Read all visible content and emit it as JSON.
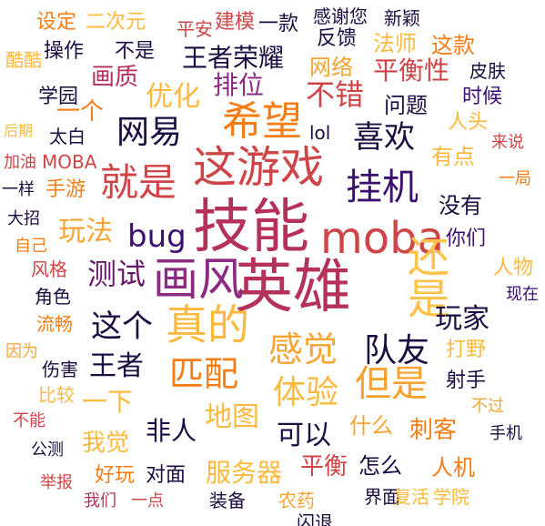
{
  "words": [
    {
      "text": "技能",
      "color": "#b5315a"
    },
    {
      "text": "英雄",
      "color": "#b5315a"
    },
    {
      "text": "这游戏",
      "color": "#cf4446"
    },
    {
      "text": "moba",
      "color": "#cf4446"
    },
    {
      "text": "画风",
      "color": "#8c2981"
    },
    {
      "text": "希望",
      "color": "#f57d15"
    },
    {
      "text": "真的",
      "color": "#fcb93e"
    },
    {
      "text": "还是",
      "color": "#fdc248"
    },
    {
      "text": "就是",
      "color": "#cf4446"
    },
    {
      "text": "挂机",
      "color": "#3b0f70"
    },
    {
      "text": "网易",
      "color": "#1b0c41"
    },
    {
      "text": "喜欢",
      "color": "#1b0c41"
    },
    {
      "text": "感觉",
      "color": "#f6a433"
    },
    {
      "text": "队友",
      "color": "#1b0c41"
    },
    {
      "text": "匹配",
      "color": "#f57d15"
    },
    {
      "text": "体验",
      "color": "#fcb93e"
    },
    {
      "text": "但是",
      "color": "#f8a12c"
    },
    {
      "text": "这个",
      "color": "#1b0c41"
    },
    {
      "text": "测试",
      "color": "#6a176e"
    },
    {
      "text": "bug",
      "color": "#3b0f70"
    },
    {
      "text": "玩法",
      "color": "#f6a433"
    },
    {
      "text": "玩家",
      "color": "#1b0c41"
    },
    {
      "text": "不错",
      "color": "#cf4446"
    },
    {
      "text": "优化",
      "color": "#fcb93e"
    },
    {
      "text": "排位",
      "color": "#8c2981"
    },
    {
      "text": "王者荣耀",
      "color": "#1b0c41"
    },
    {
      "text": "平衡性",
      "color": "#cf4446"
    },
    {
      "text": "画质",
      "color": "#b5315a"
    },
    {
      "text": "一个",
      "color": "#f57d15"
    },
    {
      "text": "王者",
      "color": "#1b0c41"
    },
    {
      "text": "一下",
      "color": "#fcb93e"
    },
    {
      "text": "地图",
      "color": "#fcb93e"
    },
    {
      "text": "非人",
      "color": "#1b0c41"
    },
    {
      "text": "可以",
      "color": "#1b0c41"
    },
    {
      "text": "服务器",
      "color": "#fcb93e"
    },
    {
      "text": "平衡",
      "color": "#cf4446"
    },
    {
      "text": "什么",
      "color": "#f6a433"
    },
    {
      "text": "刺客",
      "color": "#f57d15"
    },
    {
      "text": "我觉",
      "color": "#fcb93e"
    },
    {
      "text": "问题",
      "color": "#1b0c41"
    },
    {
      "text": "有点",
      "color": "#fcb93e"
    },
    {
      "text": "没有",
      "color": "#1b0c41"
    },
    {
      "text": "你们",
      "color": "#3b0f70"
    },
    {
      "text": "人物",
      "color": "#fcb93e"
    },
    {
      "text": "现在",
      "color": "#3b0f70"
    },
    {
      "text": "打野",
      "color": "#fcb93e"
    },
    {
      "text": "射手",
      "color": "#1b0c41"
    },
    {
      "text": "手游",
      "color": "#f57d15"
    },
    {
      "text": "太白",
      "color": "#1b0c41"
    },
    {
      "text": "MOBA",
      "color": "#cf4446"
    },
    {
      "text": "一样",
      "color": "#1b0c41"
    },
    {
      "text": "大招",
      "color": "#1b0c41"
    },
    {
      "text": "自己",
      "color": "#f57d15"
    },
    {
      "text": "风格",
      "color": "#cf4446"
    },
    {
      "text": "角色",
      "color": "#1b0c41"
    },
    {
      "text": "流畅",
      "color": "#f57d15"
    },
    {
      "text": "因为",
      "color": "#f6a433"
    },
    {
      "text": "伤害",
      "color": "#1b0c41"
    },
    {
      "text": "比较",
      "color": "#fcb93e"
    },
    {
      "text": "不能",
      "color": "#cf4446"
    },
    {
      "text": "公测",
      "color": "#1b0c41"
    },
    {
      "text": "举报",
      "color": "#cf4446"
    },
    {
      "text": "好玩",
      "color": "#f57d15"
    },
    {
      "text": "对面",
      "color": "#1b0c41"
    },
    {
      "text": "我们",
      "color": "#b5315a"
    },
    {
      "text": "一点",
      "color": "#cf4446"
    },
    {
      "text": "装备",
      "color": "#1b0c41"
    },
    {
      "text": "农药",
      "color": "#f6a433"
    },
    {
      "text": "闪退",
      "color": "#1b0c41"
    },
    {
      "text": "界面",
      "color": "#1b0c41"
    },
    {
      "text": "复活",
      "color": "#fcb93e"
    },
    {
      "text": "学院",
      "color": "#fcb93e"
    },
    {
      "text": "人机",
      "color": "#f57d15"
    },
    {
      "text": "怎么",
      "color": "#1b0c41"
    },
    {
      "text": "手机",
      "color": "#1b0c41"
    },
    {
      "text": "不过",
      "color": "#f6a433"
    },
    {
      "text": "一局",
      "color": "#f57d15"
    },
    {
      "text": "来说",
      "color": "#cf4446"
    },
    {
      "text": "时候",
      "color": "#3b0f70"
    },
    {
      "text": "人头",
      "color": "#fcb93e"
    },
    {
      "text": "皮肤",
      "color": "#1b0c41"
    },
    {
      "text": "这款",
      "color": "#f57d15"
    },
    {
      "text": "网络",
      "color": "#f6a433"
    },
    {
      "text": "法师",
      "color": "#fcb93e"
    },
    {
      "text": "反馈",
      "color": "#1b0c41"
    },
    {
      "text": "感谢您",
      "color": "#1b0c41"
    },
    {
      "text": "新颖",
      "color": "#1b0c41"
    },
    {
      "text": "一款",
      "color": "#1b0c41"
    },
    {
      "text": "建模",
      "color": "#cf4446"
    },
    {
      "text": "平安",
      "color": "#cf4446"
    },
    {
      "text": "二次元",
      "color": "#fcb93e"
    },
    {
      "text": "设定",
      "color": "#f57d15"
    },
    {
      "text": "酷酷",
      "color": "#fcb93e"
    },
    {
      "text": "操作",
      "color": "#1b0c41"
    },
    {
      "text": "不是",
      "color": "#1b0c41"
    },
    {
      "text": "学园",
      "color": "#1b0c41"
    },
    {
      "text": "后期",
      "color": "#fcb93e"
    },
    {
      "text": "加油",
      "color": "#cf4446"
    },
    {
      "text": "lol",
      "color": "#1b0c41"
    }
  ]
}
